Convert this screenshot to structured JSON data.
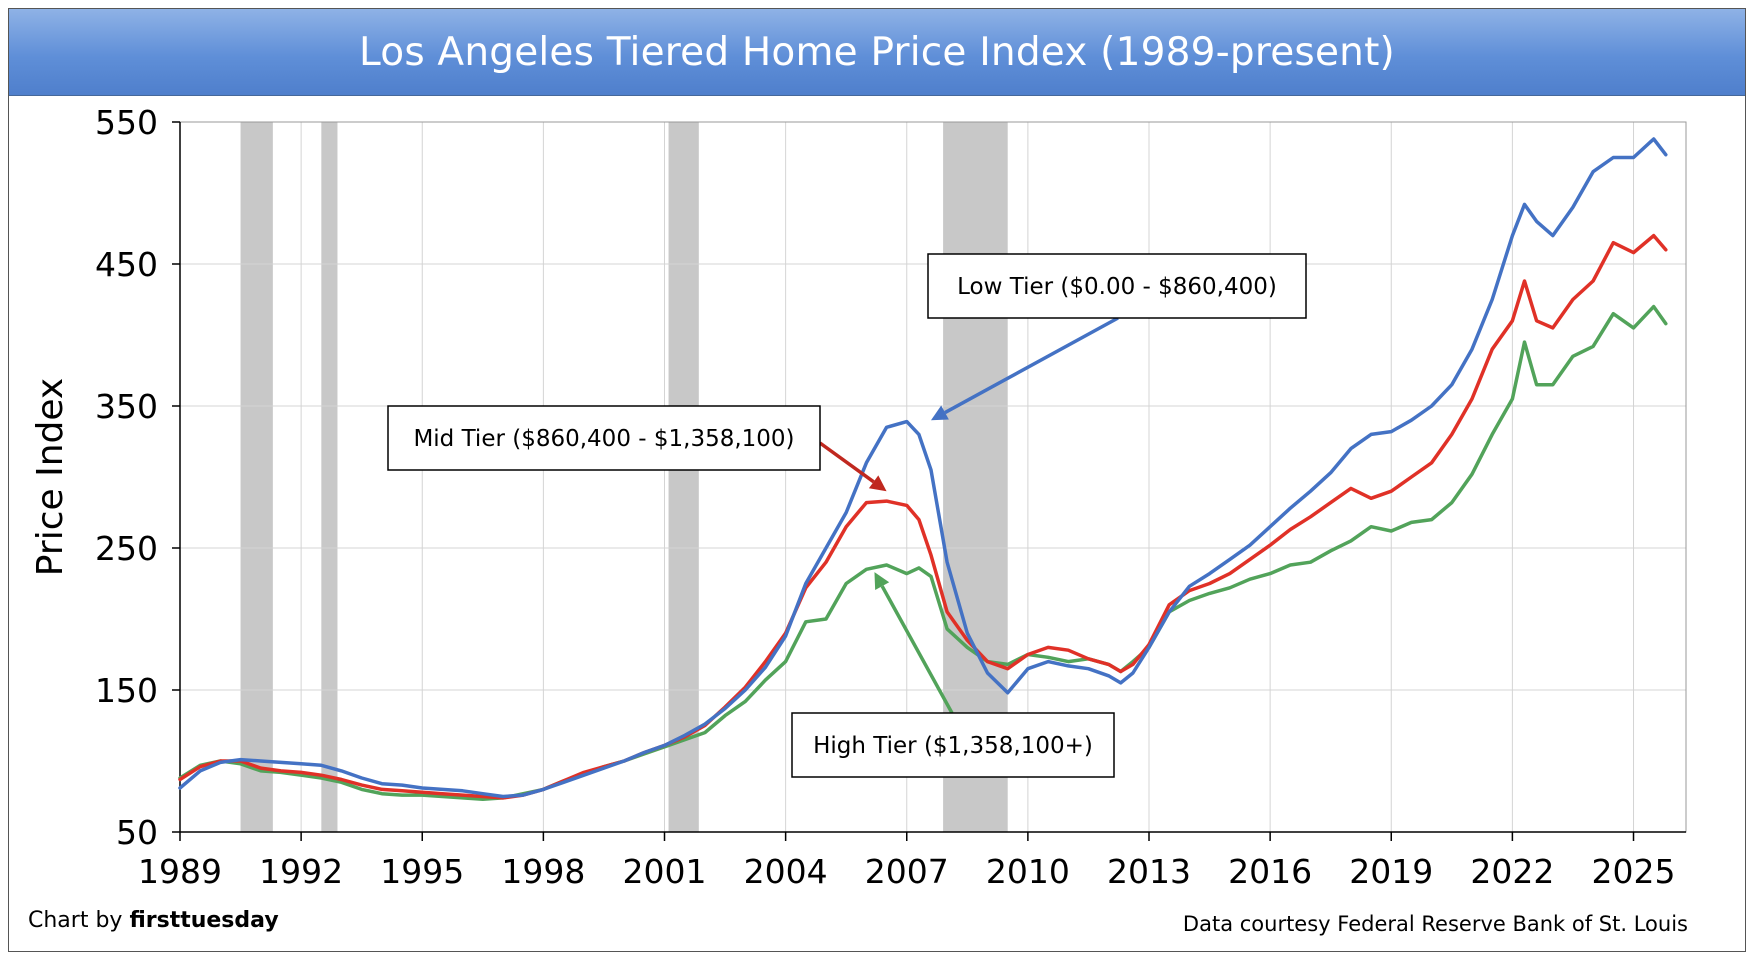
{
  "chart_data": {
    "type": "line",
    "title": "Los Angeles Tiered Home Price Index (1989-present)",
    "ylabel": "Price Index",
    "xlabel": "",
    "xlim": [
      1989,
      2026.3
    ],
    "ylim": [
      50,
      550
    ],
    "x_ticks": [
      1989,
      1992,
      1995,
      1998,
      2001,
      2004,
      2007,
      2010,
      2013,
      2016,
      2019,
      2022,
      2025
    ],
    "y_ticks": [
      50,
      150,
      250,
      350,
      450,
      550
    ],
    "grid": true,
    "recessions": [
      [
        1990.5,
        1991.3
      ],
      [
        1992.5,
        1992.9
      ],
      [
        2001.1,
        2001.85
      ],
      [
        2007.9,
        2009.5
      ]
    ],
    "series": [
      {
        "name": "Low Tier",
        "color": "#4472c4",
        "x": [
          1989,
          1989.5,
          1990,
          1990.5,
          1991,
          1991.5,
          1992,
          1992.5,
          1993,
          1993.5,
          1994,
          1994.5,
          1995,
          1995.5,
          1996,
          1996.5,
          1997,
          1997.5,
          1998,
          1998.5,
          1999,
          1999.5,
          2000,
          2000.5,
          2001,
          2001.5,
          2002,
          2002.5,
          2003,
          2003.5,
          2004,
          2004.5,
          2005,
          2005.5,
          2006,
          2006.5,
          2007,
          2007.3,
          2007.6,
          2008,
          2008.5,
          2009,
          2009.5,
          2010,
          2010.5,
          2011,
          2011.5,
          2012,
          2012.3,
          2012.6,
          2013,
          2013.5,
          2014,
          2014.5,
          2015,
          2015.5,
          2016,
          2016.5,
          2017,
          2017.5,
          2018,
          2018.5,
          2019,
          2019.5,
          2020,
          2020.5,
          2021,
          2021.5,
          2022,
          2022.3,
          2022.6,
          2023,
          2023.5,
          2024,
          2024.5,
          2025,
          2025.5,
          2025.8
        ],
        "values": [
          81,
          93,
          99,
          101,
          100,
          99,
          98,
          97,
          93,
          88,
          84,
          83,
          81,
          80,
          79,
          77,
          75,
          76,
          80,
          85,
          90,
          95,
          100,
          106,
          111,
          118,
          126,
          137,
          150,
          166,
          188,
          225,
          250,
          275,
          310,
          335,
          339,
          330,
          305,
          240,
          190,
          162,
          148,
          165,
          170,
          167,
          165,
          160,
          155,
          162,
          180,
          205,
          223,
          232,
          242,
          252,
          265,
          278,
          290,
          303,
          320,
          330,
          332,
          340,
          350,
          365,
          390,
          425,
          470,
          492,
          480,
          470,
          490,
          515,
          525,
          525,
          538,
          527
        ]
      },
      {
        "name": "Mid Tier",
        "color": "#e03127",
        "x": [
          1989,
          1989.5,
          1990,
          1990.5,
          1991,
          1991.5,
          1992,
          1992.5,
          1993,
          1993.5,
          1994,
          1994.5,
          1995,
          1995.5,
          1996,
          1996.5,
          1997,
          1997.5,
          1998,
          1998.5,
          1999,
          1999.5,
          2000,
          2000.5,
          2001,
          2001.5,
          2002,
          2002.5,
          2003,
          2003.5,
          2004,
          2004.5,
          2005,
          2005.5,
          2006,
          2006.5,
          2007,
          2007.3,
          2007.6,
          2008,
          2008.5,
          2009,
          2009.5,
          2010,
          2010.5,
          2011,
          2011.5,
          2012,
          2012.3,
          2012.6,
          2013,
          2013.5,
          2014,
          2014.5,
          2015,
          2015.5,
          2016,
          2016.5,
          2017,
          2017.5,
          2018,
          2018.5,
          2019,
          2019.5,
          2020,
          2020.5,
          2021,
          2021.5,
          2022,
          2022.3,
          2022.6,
          2023,
          2023.5,
          2024,
          2024.5,
          2025,
          2025.5,
          2025.8
        ],
        "values": [
          87,
          96,
          100,
          100,
          95,
          93,
          92,
          90,
          87,
          83,
          80,
          79,
          78,
          77,
          76,
          75,
          74,
          76,
          80,
          86,
          92,
          96,
          100,
          106,
          111,
          117,
          125,
          138,
          152,
          170,
          190,
          222,
          240,
          265,
          282,
          283,
          280,
          270,
          245,
          205,
          185,
          170,
          165,
          175,
          180,
          178,
          172,
          168,
          163,
          168,
          182,
          210,
          220,
          225,
          232,
          242,
          252,
          263,
          272,
          282,
          292,
          285,
          290,
          300,
          310,
          330,
          355,
          390,
          410,
          438,
          410,
          405,
          425,
          438,
          465,
          458,
          470,
          460
        ]
      },
      {
        "name": "High Tier",
        "color": "#52a35a",
        "x": [
          1989,
          1989.5,
          1990,
          1990.5,
          1991,
          1991.5,
          1992,
          1992.5,
          1993,
          1993.5,
          1994,
          1994.5,
          1995,
          1995.5,
          1996,
          1996.5,
          1997,
          1997.5,
          1998,
          1998.5,
          1999,
          1999.5,
          2000,
          2000.5,
          2001,
          2001.5,
          2002,
          2002.5,
          2003,
          2003.5,
          2004,
          2004.5,
          2005,
          2005.5,
          2006,
          2006.5,
          2007,
          2007.3,
          2007.6,
          2008,
          2008.5,
          2009,
          2009.5,
          2010,
          2010.5,
          2011,
          2011.5,
          2012,
          2012.3,
          2012.6,
          2013,
          2013.5,
          2014,
          2014.5,
          2015,
          2015.5,
          2016,
          2016.5,
          2017,
          2017.5,
          2018,
          2018.5,
          2019,
          2019.5,
          2020,
          2020.5,
          2021,
          2021.5,
          2022,
          2022.3,
          2022.6,
          2023,
          2023.5,
          2024,
          2024.5,
          2025,
          2025.5,
          2025.8
        ],
        "values": [
          88,
          97,
          100,
          98,
          93,
          92,
          90,
          88,
          85,
          80,
          77,
          76,
          76,
          75,
          74,
          73,
          74,
          77,
          80,
          86,
          91,
          96,
          100,
          105,
          110,
          115,
          120,
          132,
          142,
          157,
          170,
          198,
          200,
          225,
          235,
          238,
          232,
          236,
          230,
          193,
          180,
          170,
          168,
          175,
          173,
          170,
          172,
          168,
          163,
          170,
          180,
          205,
          213,
          218,
          222,
          228,
          232,
          238,
          240,
          248,
          255,
          265,
          262,
          268,
          270,
          282,
          302,
          330,
          355,
          395,
          365,
          365,
          385,
          392,
          415,
          405,
          420,
          408
        ]
      }
    ],
    "annotations": [
      {
        "text": "Low Tier ($0.00 - $860,400)",
        "color": "#4472c4",
        "target": [
          2007.6,
          340
        ]
      },
      {
        "text": "Mid Tier ($860,400 - $1,358,100)",
        "color": "#c0281f",
        "target": [
          2006.5,
          290
        ]
      },
      {
        "text": "High Tier ($1,358,100+)",
        "color": "#52a35a",
        "target": [
          2006.2,
          233
        ]
      }
    ]
  },
  "credits": {
    "left_prefix": "Chart by ",
    "left_brand": "firsttuesday",
    "right": "Data courtesy Federal Reserve Bank of St. Louis"
  }
}
